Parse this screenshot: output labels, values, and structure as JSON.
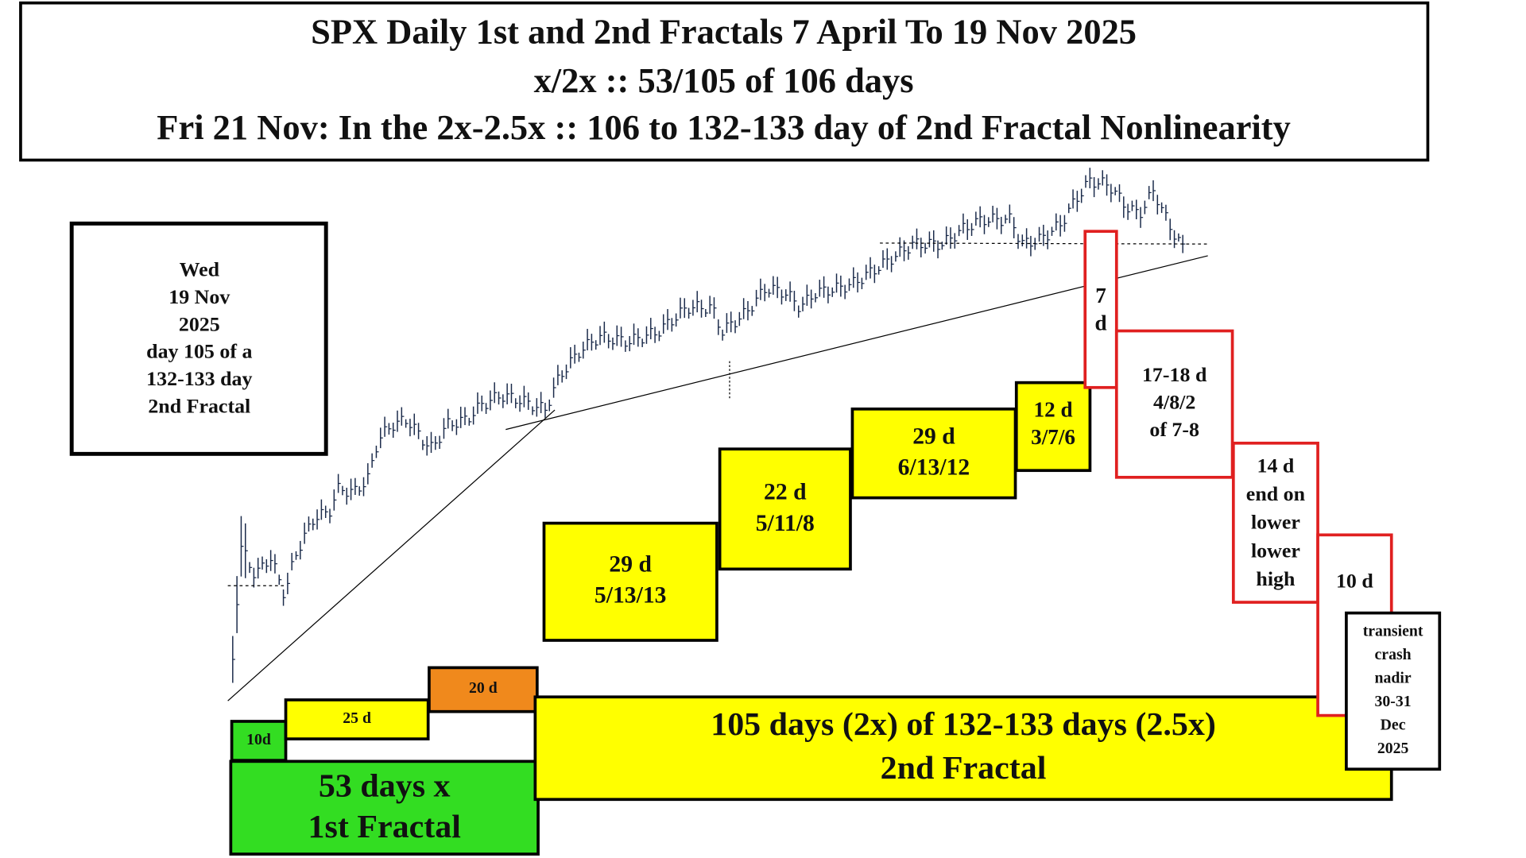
{
  "header": {
    "lines": [
      "SPX Daily 1st and 2nd Fractals   7 April To 19 Nov 2025",
      "x/2x :: 53/105 of 106 days",
      "Fri 21 Nov: In the 2x-2.5x :: 106 to 132-133 day of 2nd Fractal Nonlinearity"
    ]
  },
  "note": {
    "lines": [
      "Wed",
      "19 Nov",
      "2025",
      "day 105 of a",
      "132-133 day",
      "2nd Fractal"
    ]
  },
  "boxes": [
    {
      "lines": [
        "10d"
      ]
    },
    {
      "lines": [
        "25 d"
      ]
    },
    {
      "lines": [
        "20 d"
      ]
    },
    {
      "lines": [
        "53 days  x",
        "1st Fractal"
      ]
    },
    {
      "lines": [
        "105 days (2x) of 132-133 days (2.5x)",
        "2nd Fractal"
      ]
    },
    {
      "lines": [
        "29 d",
        "5/13/13"
      ]
    },
    {
      "lines": [
        "22 d",
        "5/11/8"
      ]
    },
    {
      "lines": [
        "29 d",
        "6/13/12"
      ]
    },
    {
      "lines": [
        "12 d",
        "3/7/6"
      ]
    },
    {
      "lines": [
        "7",
        "d"
      ]
    },
    {
      "lines": [
        "17-18 d",
        "4/8/2",
        "of 7-8"
      ]
    },
    {
      "lines": [
        "14 d",
        "end on",
        "lower",
        "lower",
        "high"
      ]
    },
    {
      "lines": [
        "10 d"
      ]
    },
    {
      "lines": [
        "transient",
        "crash",
        "nadir",
        "30-31",
        "Dec",
        "2025"
      ]
    }
  ]
}
